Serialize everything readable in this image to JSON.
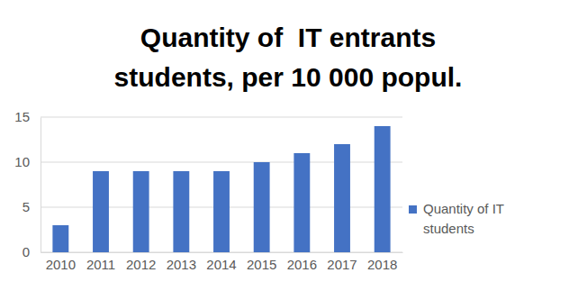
{
  "chart_data": {
    "type": "bar",
    "title": [
      "Quantity of  IT entrants",
      "students, per 10 000 popul."
    ],
    "categories": [
      "2010",
      "2011",
      "2012",
      "2013",
      "2014",
      "2015",
      "2016",
      "2017",
      "2018"
    ],
    "series": [
      {
        "name": "Quantity of IT students",
        "color": "#4472c4",
        "values": [
          3,
          9,
          9,
          9,
          9,
          10,
          11,
          12,
          14
        ]
      }
    ],
    "ylim": [
      0,
      15
    ],
    "yticks": [
      0,
      5,
      10,
      15
    ],
    "grid": true,
    "legend": "right"
  }
}
